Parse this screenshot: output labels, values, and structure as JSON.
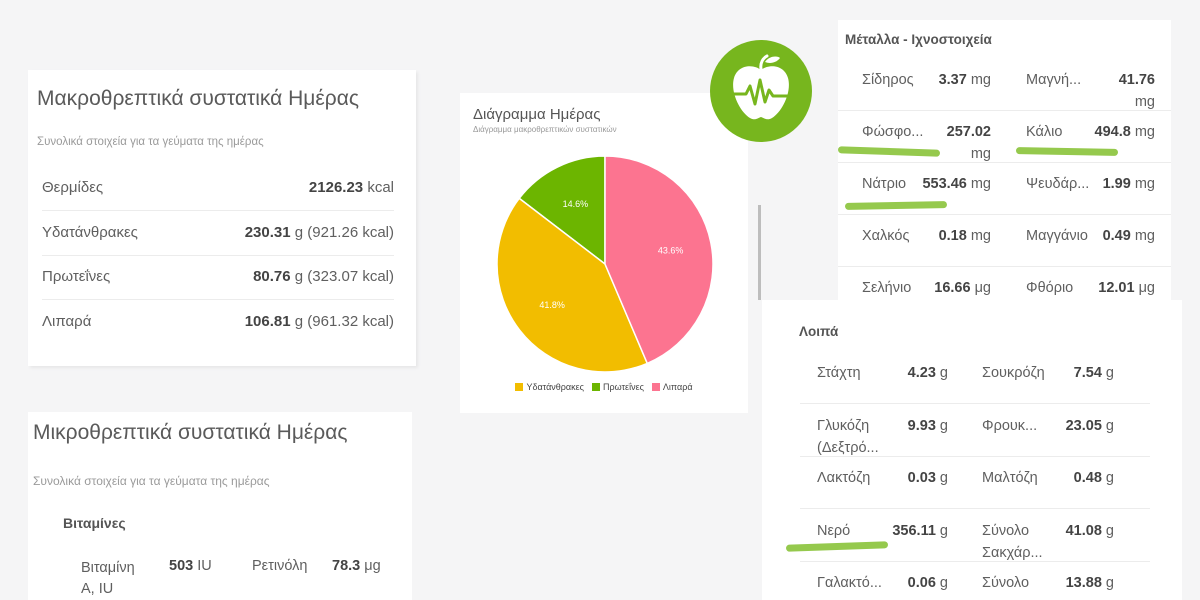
{
  "macro": {
    "title": "Μακροθρεπτικά συστατικά Ημέρας",
    "subtitle": "Συνολικά στοιχεία για τα γεύματα της ημέρας",
    "rows": [
      {
        "label": "Θερμίδες",
        "value": "2126.23",
        "unit": " kcal"
      },
      {
        "label": "Υδατάνθρακες",
        "value": "230.31",
        "unit": " g (921.26 kcal)"
      },
      {
        "label": "Πρωτεΐνες",
        "value": "80.76",
        "unit": " g (323.07 kcal)"
      },
      {
        "label": "Λιπαρά",
        "value": "106.81",
        "unit": " g (961.32 kcal)"
      }
    ]
  },
  "chart": {
    "title": "Διάγραμμα Ημέρας",
    "subtitle": "Διάγραμμα μακροθρεπτικών συστατικών"
  },
  "chart_data": {
    "type": "pie",
    "title": "Διάγραμμα Ημέρας",
    "subtitle": "Διάγραμμα μακροθρεπτικών συστατικών",
    "categories": [
      "Υδατάνθρακες",
      "Πρωτεΐνες",
      "Λιπαρά"
    ],
    "values": [
      41.8,
      14.6,
      43.6
    ],
    "labels": [
      "41.8%",
      "14.6%",
      "43.6%"
    ],
    "colors": [
      "#f2bd00",
      "#6cb500",
      "#fc7490"
    ],
    "legend": "bottom"
  },
  "logo": {
    "icon": "apple-heartbeat-icon",
    "color": "#77b61e"
  },
  "metals": {
    "title": "Μέταλλα - Ιχνοστοιχεία",
    "rows": [
      [
        {
          "label": "Σίδηρος",
          "value": "3.37",
          "unit": " mg"
        },
        {
          "label": "Μαγνή...",
          "value": "41.76",
          "unit": "mg"
        }
      ],
      [
        {
          "label": "Φώσφο...",
          "value": "257.02",
          "unit": "mg"
        },
        {
          "label": "Κάλιο",
          "value": "494.8",
          "unit": " mg"
        }
      ],
      [
        {
          "label": "Νάτριο",
          "value": "553.46",
          "unit": " mg"
        },
        {
          "label": "Ψευδάρ...",
          "value": "1.99",
          "unit": " mg"
        }
      ],
      [
        {
          "label": "Χαλκός",
          "value": "0.18",
          "unit": " mg"
        },
        {
          "label": "Μαγγάνιο",
          "value": "0.49",
          "unit": " mg"
        }
      ],
      [
        {
          "label": "Σελήνιο",
          "value": "16.66",
          "unit": " μg"
        },
        {
          "label": "Φθόριο",
          "value": "12.01",
          "unit": " μg"
        }
      ]
    ]
  },
  "other": {
    "title": "Λοιπά",
    "rows": [
      [
        {
          "label": "Στάχτη",
          "value": "4.23",
          "unit": " g"
        },
        {
          "label": "Σουκρόζη",
          "value": "7.54",
          "unit": " g"
        }
      ],
      [
        {
          "label": "Γλυκόζη",
          "label2": "(Δεξτρό...",
          "value": "9.93",
          "unit": " g"
        },
        {
          "label": "Φρουκ...",
          "value": "23.05",
          "unit": " g"
        }
      ],
      [
        {
          "label": "Λακτόζη",
          "value": "0.03",
          "unit": " g"
        },
        {
          "label": "Μαλτόζη",
          "value": "0.48",
          "unit": " g"
        }
      ],
      [
        {
          "label": "Νερό",
          "value": "356.11",
          "unit": " g"
        },
        {
          "label": "Σύνολο",
          "label2": "Σακχάρ...",
          "value": "41.08",
          "unit": " g"
        }
      ],
      [
        {
          "label": "Γαλακτό...",
          "value": "0.06",
          "unit": " g"
        },
        {
          "label": "Σύνολο",
          "value": "13.88",
          "unit": " g"
        }
      ]
    ]
  },
  "micro": {
    "title": "Μικροθρεπτικά συστατικά Ημέρας",
    "subtitle": "Συνολικά στοιχεία για τα γεύματα της ημέρας",
    "section": "Βιταμίνες",
    "rows": [
      [
        {
          "label": "Βιταμίνη",
          "label2": "A, IU",
          "value": "503",
          "unit": " IU"
        },
        {
          "label": "Ρετινόλη",
          "value": "78.3",
          "unit": " μg"
        }
      ]
    ]
  }
}
